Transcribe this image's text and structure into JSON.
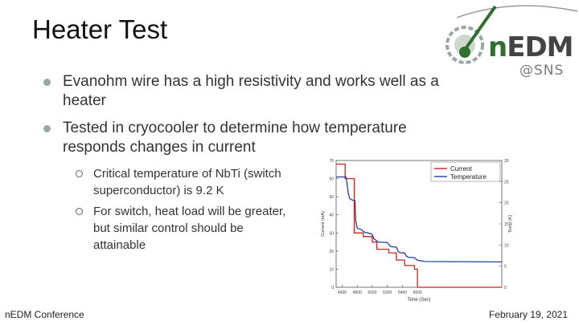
{
  "slide": {
    "title": "Heater Test",
    "bullets": [
      "Evanohm wire has a high resistivity and works well as a heater",
      "Tested in cryocooler to determine how temperature responds changes in current"
    ],
    "sub_bullets": [
      "Critical temperature of NbTi (switch superconductor) is 9.2 K",
      "For switch, heat load will be greater, but similar control should be attainable"
    ],
    "footer_left": "nEDM Conference",
    "footer_right": "February 19, 2021"
  },
  "logo": {
    "n": "n",
    "edm": "EDM",
    "sub": "@SNS"
  },
  "colors": {
    "current": "#cc2222",
    "temperature": "#1f3fa0",
    "logo_green": "#2f6f2f"
  },
  "chart_data": {
    "type": "line",
    "xlabel": "Time (Sec)",
    "ylabel": "Current (mA)",
    "ylabel_right": "Temp (K)",
    "xlim": [
      4520,
      6720
    ],
    "ylim": [
      0,
      70
    ],
    "ylim_right": [
      0,
      30
    ],
    "xticks": [
      "4600",
      "4800",
      "5000",
      "5200",
      "5400",
      "5600"
    ],
    "xtick_values": [
      4600,
      4800,
      5000,
      5200,
      5400,
      5600
    ],
    "yticks": [
      0,
      10,
      20,
      30,
      40,
      50,
      60,
      70
    ],
    "yticks_right": [
      0,
      5,
      10,
      15,
      20,
      25,
      30
    ],
    "legend": [
      "Current",
      "Temperature"
    ],
    "legend_position": "top-right",
    "series": [
      {
        "name": "Current",
        "axis": "left",
        "x": [
          4520,
          4640,
          4640,
          4760,
          4760,
          4880,
          4880,
          5000,
          5000,
          5060,
          5060,
          5220,
          5220,
          5320,
          5320,
          5430,
          5430,
          5560,
          5560,
          5600,
          5600,
          6720
        ],
        "y": [
          68,
          68,
          60,
          60,
          30,
          30,
          28,
          28,
          25,
          25,
          21,
          21,
          19,
          19,
          15,
          15,
          12,
          12,
          10,
          10,
          0,
          0
        ]
      },
      {
        "name": "Temperature",
        "axis": "right",
        "x": [
          4520,
          4650,
          4660,
          4680,
          4700,
          4740,
          4770,
          4780,
          4800,
          4860,
          4880,
          4900,
          4960,
          5000,
          5020,
          5060,
          5080,
          5200,
          5230,
          5250,
          5320,
          5340,
          5360,
          5430,
          5450,
          5480,
          5560,
          5600,
          5700,
          6720
        ],
        "y": [
          26.1,
          26.1,
          25.2,
          22.3,
          21.0,
          20.6,
          20.5,
          15.8,
          14.0,
          13.6,
          13.2,
          13.0,
          12.8,
          12.5,
          11.5,
          11.0,
          10.7,
          10.6,
          9.9,
          9.6,
          9.5,
          8.6,
          8.2,
          8.1,
          7.4,
          7.1,
          7.0,
          6.4,
          6.1,
          6.0
        ]
      }
    ]
  }
}
